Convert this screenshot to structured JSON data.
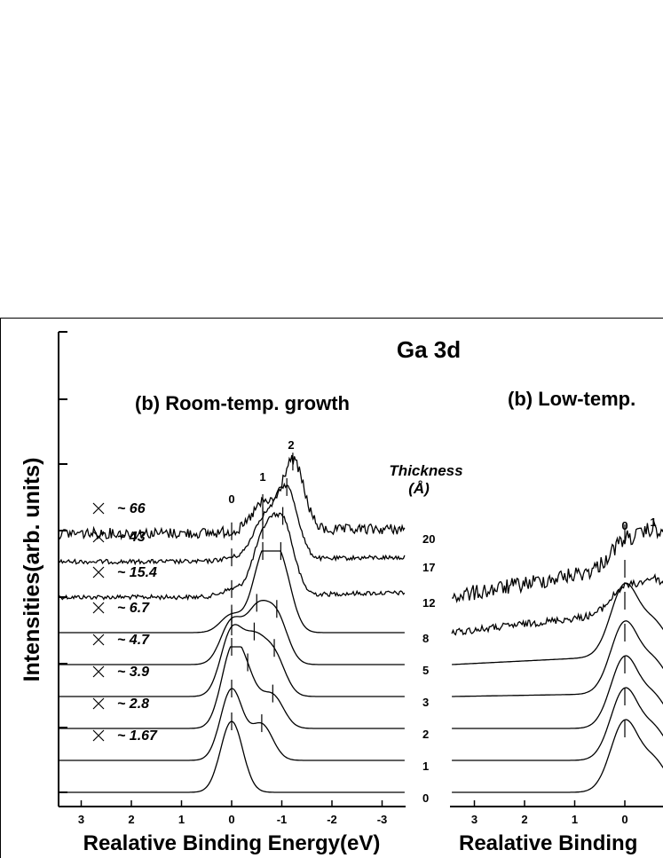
{
  "figure_title": "Ga 3d",
  "chart_data": [
    {
      "type": "line",
      "title": "(b) Room-temp. growth",
      "xlabel": "Realative Binding Energy(eV)",
      "ylabel": "Intensities(arb. units)",
      "xlim": [
        3.5,
        -3.5
      ],
      "x_reversed": true,
      "x_ticks": [
        "3",
        "2",
        "1",
        "0",
        "-1",
        "-2",
        "-3"
      ],
      "thickness_header": "Thickness",
      "thickness_unit": "(Å)",
      "peak_labels": [
        "0",
        "1",
        "2"
      ],
      "peak_positions_eV": [
        0,
        -0.62,
        -1.22
      ],
      "series": [
        {
          "thickness": "0",
          "ratio": "",
          "peaks": [
            0
          ],
          "amps": [
            1.0
          ]
        },
        {
          "thickness": "1",
          "ratio": "~ 1.67",
          "peaks": [
            0,
            -0.6
          ],
          "amps": [
            1.0,
            0.5
          ]
        },
        {
          "thickness": "2",
          "ratio": "~ 2.8",
          "peaks": [
            0,
            -0.32,
            -0.82
          ],
          "amps": [
            1.0,
            0.55,
            0.45
          ]
        },
        {
          "thickness": "3",
          "ratio": "~ 3.9",
          "peaks": [
            0,
            -0.45,
            -0.85
          ],
          "amps": [
            0.9,
            0.7,
            0.55
          ]
        },
        {
          "thickness": "5",
          "ratio": "~ 4.7",
          "peaks": [
            0,
            -0.5,
            -0.9
          ],
          "amps": [
            0.6,
            0.7,
            0.65
          ]
        },
        {
          "thickness": "8",
          "ratio": "~ 6.7",
          "peaks": [
            0,
            -0.62,
            -0.98
          ],
          "amps": [
            0.25,
            0.95,
            0.9
          ]
        },
        {
          "thickness": "12",
          "ratio": "~ 15.4",
          "peaks": [
            0,
            -0.62,
            -1.02
          ],
          "amps": [
            0.1,
            0.75,
            1.0
          ]
        },
        {
          "thickness": "17",
          "ratio": "~ 43",
          "peaks": [
            0,
            -0.62,
            -1.1
          ],
          "amps": [
            0.05,
            0.55,
            1.0
          ]
        },
        {
          "thickness": "20",
          "ratio": "~ 66",
          "peaks": [
            0,
            -0.62,
            -1.22
          ],
          "amps": [
            0.02,
            0.4,
            1.0
          ]
        }
      ]
    },
    {
      "type": "line",
      "title": "(b) Low-temp.",
      "xlabel": "Realative Binding",
      "xlim": [
        3.5,
        -0.8
      ],
      "x_reversed": true,
      "x_ticks": [
        "3",
        "2",
        "1",
        "0"
      ],
      "peak_labels": [
        "0",
        "1"
      ],
      "peak_positions_eV": [
        0,
        -0.62
      ]
    }
  ]
}
